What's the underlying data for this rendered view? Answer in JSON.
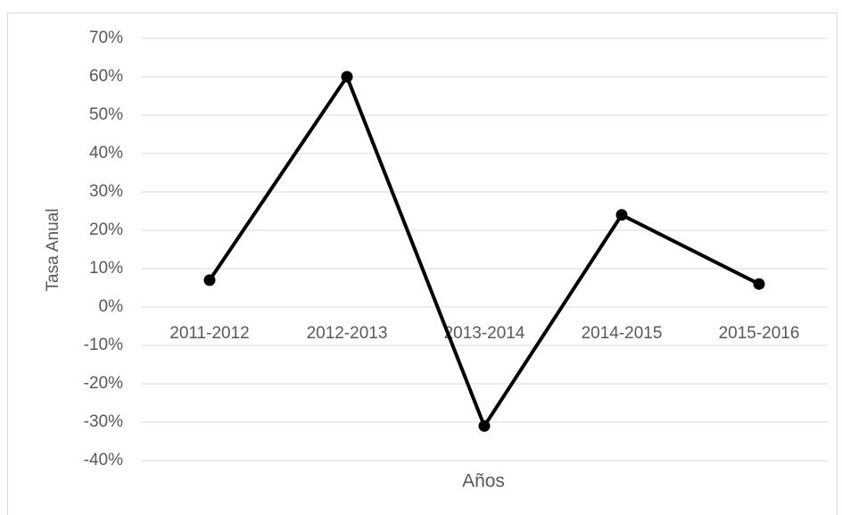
{
  "chart_data": {
    "type": "line",
    "categories": [
      "2011-2012",
      "2012-2013",
      "2013-2014",
      "2014-2015",
      "2015-2016"
    ],
    "series": [
      {
        "name": "Tasa Anual",
        "color": "#000000",
        "values": [
          7,
          60,
          -31,
          24,
          6
        ]
      }
    ],
    "x_label": "Años",
    "y_label": "Tasa Anual",
    "ylim": [
      -40,
      70
    ],
    "yticks": [
      {
        "value": -40,
        "label": "-40%"
      },
      {
        "value": -30,
        "label": "-30%"
      },
      {
        "value": -20,
        "label": "-20%"
      },
      {
        "value": -10,
        "label": "-10%"
      },
      {
        "value": 0,
        "label": "0%"
      },
      {
        "value": 10,
        "label": "10%"
      },
      {
        "value": 20,
        "label": "20%"
      },
      {
        "value": 30,
        "label": "30%"
      },
      {
        "value": 40,
        "label": "40%"
      },
      {
        "value": 50,
        "label": "50%"
      },
      {
        "value": 60,
        "label": "60%"
      },
      {
        "value": 70,
        "label": "70%"
      }
    ],
    "grid": true
  }
}
